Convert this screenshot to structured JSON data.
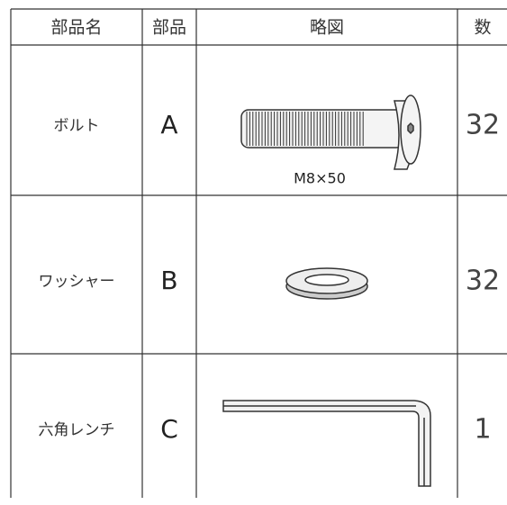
{
  "table": {
    "header": [
      "部品名",
      "部品",
      "略図",
      "数"
    ],
    "rows": [
      {
        "name": "ボルト",
        "part": "A",
        "caption": "M8×50",
        "count": 32
      },
      {
        "name": "ワッシャー",
        "part": "B",
        "count": 32
      },
      {
        "name": "六角レンチ",
        "part": "C",
        "count": 1
      }
    ]
  }
}
